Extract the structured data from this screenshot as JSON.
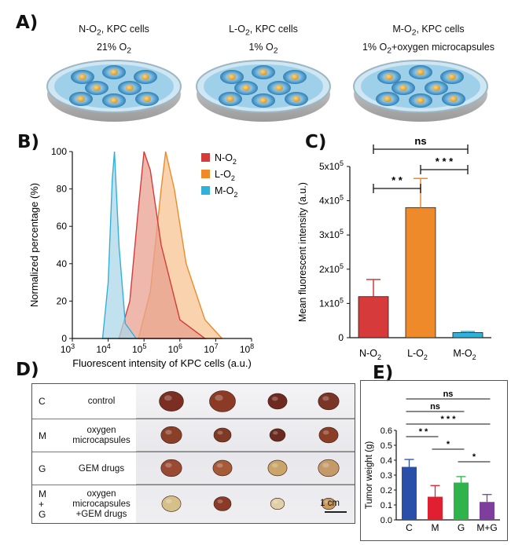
{
  "panels": {
    "a": "A)",
    "b": "B)",
    "c": "C)",
    "d": "D)",
    "e": "E)"
  },
  "dishes": [
    {
      "title_pre": "N-O",
      "title_sub": "2",
      "title_post": ", KPC cells",
      "cond_pre": "21% O",
      "cond_sub": "2",
      "cond_post": ""
    },
    {
      "title_pre": "L-O",
      "title_sub": "2",
      "title_post": ", KPC cells",
      "cond_pre": "1% O",
      "cond_sub": "2",
      "cond_post": ""
    },
    {
      "title_pre": "M-O",
      "title_sub": "2",
      "title_post": ", KPC cells",
      "cond_pre": "1% O",
      "cond_sub": "2",
      "cond_post": "+oxygen microcapsules"
    }
  ],
  "chart_data": [
    {
      "panel": "B",
      "type": "area",
      "xlabel": "Fluorescent intensity of KPC cells (a.u.)",
      "ylabel": "Normalized percentage (%)",
      "xscale": "log",
      "xlim": [
        1000,
        100000000
      ],
      "xticks": [
        {
          "base": "10",
          "exp": "3"
        },
        {
          "base": "10",
          "exp": "4"
        },
        {
          "base": "10",
          "exp": "5"
        },
        {
          "base": "10",
          "exp": "6"
        },
        {
          "base": "10",
          "exp": "7"
        },
        {
          "base": "10",
          "exp": "8"
        }
      ],
      "ylim": [
        0,
        100
      ],
      "yticks": [
        "0",
        "20",
        "40",
        "60",
        "80",
        "100"
      ],
      "legend_position": "top-right",
      "series": [
        {
          "name": "N-O",
          "sub": "2",
          "color": "#d63a3a",
          "fill": "#e8a090",
          "peak": 100000,
          "x": [
            20000,
            40000,
            70000,
            100000,
            150000,
            300000,
            1000000,
            5000000
          ],
          "y": [
            0,
            20,
            70,
            100,
            90,
            50,
            10,
            0
          ]
        },
        {
          "name": "L-O",
          "sub": "2",
          "color": "#ee8a2a",
          "fill": "#f5c492",
          "peak": 400000,
          "x": [
            70000,
            150000,
            300000,
            400000,
            700000,
            1500000,
            5000000,
            15000000
          ],
          "y": [
            0,
            25,
            80,
            100,
            80,
            40,
            10,
            0
          ]
        },
        {
          "name": "M-O",
          "sub": "2",
          "color": "#33b0d8",
          "fill": "#aed7ea",
          "peak": 15000,
          "x": [
            7000,
            10000,
            13000,
            15000,
            20000,
            30000,
            60000
          ],
          "y": [
            0,
            30,
            85,
            100,
            50,
            8,
            0
          ]
        }
      ]
    },
    {
      "panel": "C",
      "type": "bar",
      "ylabel": "Mean fluorescent intensity (a.u.)",
      "ylim": [
        0,
        500000
      ],
      "yticks": [
        {
          "base": "0",
          "exp": ""
        },
        {
          "base": "1x10",
          "exp": "5"
        },
        {
          "base": "2x10",
          "exp": "5"
        },
        {
          "base": "3x10",
          "exp": "5"
        },
        {
          "base": "4x10",
          "exp": "5"
        },
        {
          "base": "5x10",
          "exp": "5"
        }
      ],
      "categories": [
        {
          "pre": "N-O",
          "sub": "2"
        },
        {
          "pre": "L-O",
          "sub": "2"
        },
        {
          "pre": "M-O",
          "sub": "2"
        }
      ],
      "values": [
        120000,
        380000,
        15000
      ],
      "errors": [
        50000,
        85000,
        3000
      ],
      "colors": [
        "#d63a3a",
        "#ee8a2a",
        "#33b0d8"
      ],
      "significance": [
        {
          "from": 0,
          "to": 2,
          "label": "ns"
        },
        {
          "from": 0,
          "to": 1,
          "label": "* *"
        },
        {
          "from": 1,
          "to": 2,
          "label": "* * *"
        }
      ]
    },
    {
      "panel": "E",
      "type": "bar",
      "ylabel": "Tumor weight (g)",
      "ylim": [
        0,
        0.6
      ],
      "yticks": [
        "0.0",
        "0.1",
        "0.2",
        "0.3",
        "0.4",
        "0.5",
        "0.6"
      ],
      "categories": [
        "C",
        "M",
        "G",
        "M+G"
      ],
      "values": [
        0.355,
        0.155,
        0.25,
        0.12
      ],
      "errors": [
        0.05,
        0.075,
        0.04,
        0.05
      ],
      "colors": [
        "#2a4fa8",
        "#e02030",
        "#2fb34a",
        "#7d3e9e"
      ],
      "significance": [
        {
          "from": 0,
          "to": 3,
          "label": "ns"
        },
        {
          "from": 0,
          "to": 2,
          "label": "ns"
        },
        {
          "from": 0,
          "to": 3,
          "label": "* * *"
        },
        {
          "from": 0,
          "to": 1,
          "label": "* *"
        },
        {
          "from": 1,
          "to": 2,
          "label": "*"
        },
        {
          "from": 2,
          "to": 3,
          "label": "*"
        }
      ]
    }
  ],
  "panel_d": {
    "rows": [
      {
        "code_lines": [
          "C"
        ],
        "desc_lines": [
          "control"
        ],
        "tumors": [
          {
            "r": 14,
            "c": "#7a2f22"
          },
          {
            "r": 15,
            "c": "#8a3a25"
          },
          {
            "r": 11,
            "c": "#6e2a20"
          },
          {
            "r": 12,
            "c": "#7a3526"
          }
        ]
      },
      {
        "code_lines": [
          "M"
        ],
        "desc_lines": [
          "oxygen",
          "microcapsules"
        ],
        "tumors": [
          {
            "r": 12,
            "c": "#8a4028"
          },
          {
            "r": 10,
            "c": "#7e3a24"
          },
          {
            "r": 9,
            "c": "#6a2c20"
          },
          {
            "r": 11,
            "c": "#8a3e26"
          }
        ]
      },
      {
        "code_lines": [
          "G"
        ],
        "desc_lines": [
          "GEM drugs"
        ],
        "tumors": [
          {
            "r": 12,
            "c": "#9a4a32"
          },
          {
            "r": 11,
            "c": "#a55a38"
          },
          {
            "r": 11,
            "c": "#c9a56a"
          },
          {
            "r": 12,
            "c": "#c49a68"
          }
        ]
      },
      {
        "code_lines": [
          "M",
          "+",
          "G"
        ],
        "desc_lines": [
          "oxygen",
          "microcapsules",
          "+GEM drugs"
        ],
        "tumors": [
          {
            "r": 11,
            "c": "#d6c08a"
          },
          {
            "r": 10,
            "c": "#8a3a26"
          },
          {
            "r": 8,
            "c": "#e0d0a8"
          },
          {
            "r": 8,
            "c": "#c99a60"
          }
        ]
      }
    ],
    "scale_label": "1 cm"
  }
}
